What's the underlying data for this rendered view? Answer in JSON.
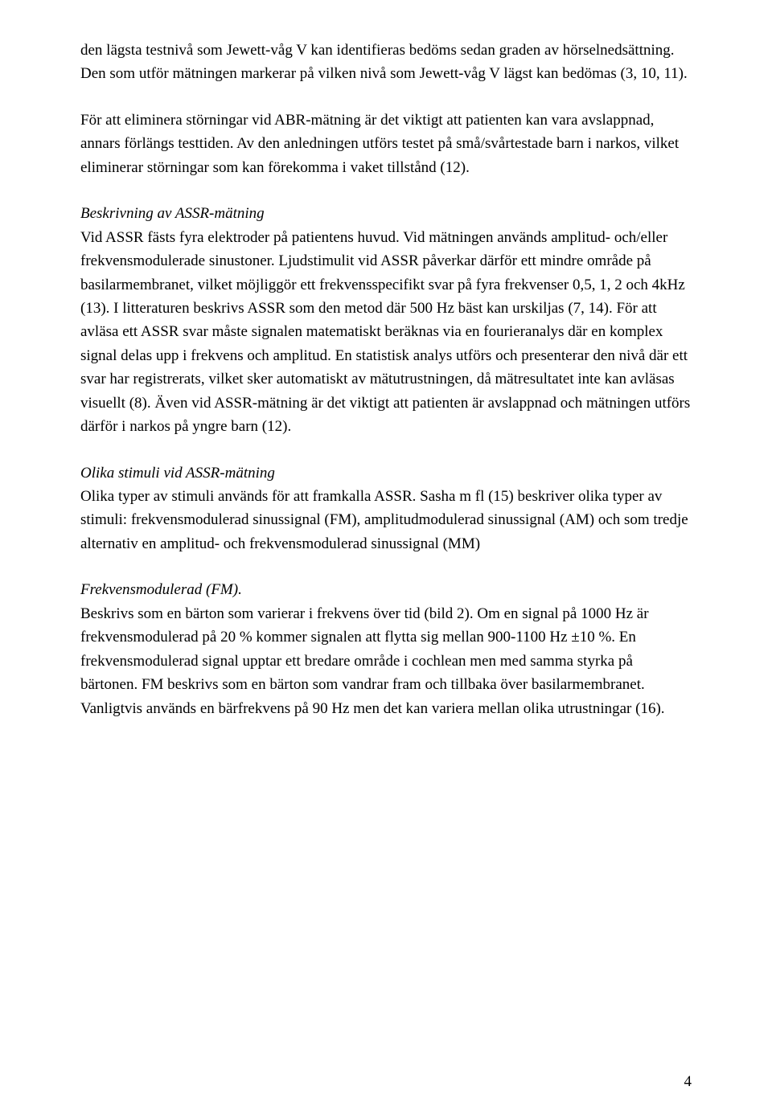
{
  "paragraphs": {
    "p1": "den lägsta testnivå som Jewett-våg V kan identifieras bedöms sedan graden av hörselnedsättning. Den som utför mätningen markerar på vilken nivå som Jewett-våg V lägst kan bedömas (3, 10, 11).",
    "p2": "För att eliminera störningar vid ABR-mätning är det viktigt att patienten kan vara avslappnad, annars förlängs testtiden. Av den anledningen utförs testet på små/svårtestade barn i narkos, vilket eliminerar störningar som kan förekomma i vaket tillstånd (12).",
    "p3_title": "Beskrivning av ASSR-mätning",
    "p3_body": "Vid ASSR fästs fyra elektroder på patientens huvud. Vid mätningen används amplitud- och/eller frekvensmodulerade sinustoner. Ljudstimulit vid ASSR påverkar därför ett mindre område på basilarmembranet, vilket möjliggör ett frekvensspecifikt svar på fyra frekvenser 0,5, 1, 2 och 4kHz (13). I litteraturen beskrivs ASSR som den metod där 500 Hz bäst kan urskiljas (7, 14). För att avläsa ett ASSR svar måste signalen matematiskt beräknas via en fourieranalys där en komplex signal delas upp i frekvens och amplitud. En statistisk analys utförs och presenterar den nivå där ett svar har registrerats, vilket sker automatiskt av mätutrustningen, då mätresultatet inte kan avläsas visuellt (8). Även vid ASSR-mätning är det viktigt att patienten är avslappnad och mätningen utförs därför i narkos på yngre barn (12).",
    "p4_title": "Olika stimuli vid ASSR-mätning",
    "p4_body": "Olika typer av stimuli används för att framkalla ASSR. Sasha m fl (15) beskriver olika typer av stimuli: frekvensmodulerad sinussignal (FM), amplitudmodulerad sinussignal (AM) och som tredje alternativ en amplitud- och frekvensmodulerad sinussignal (MM)",
    "p5_title": "Frekvensmodulerad (FM).",
    "p5_body": "Beskrivs som en bärton som varierar i frekvens över tid (bild 2). Om en signal på 1000 Hz är frekvensmodulerad på 20 % kommer signalen att flytta sig mellan 900-1100 Hz ±10 %. En frekvensmodulerad signal upptar ett bredare område i cochlean men med samma styrka på bärtonen. FM beskrivs som en bärton som vandrar fram och tillbaka över basilarmembranet. Vanligtvis används en bärfrekvens på 90 Hz men det kan variera mellan olika utrustningar (16)."
  },
  "page_number": "4"
}
